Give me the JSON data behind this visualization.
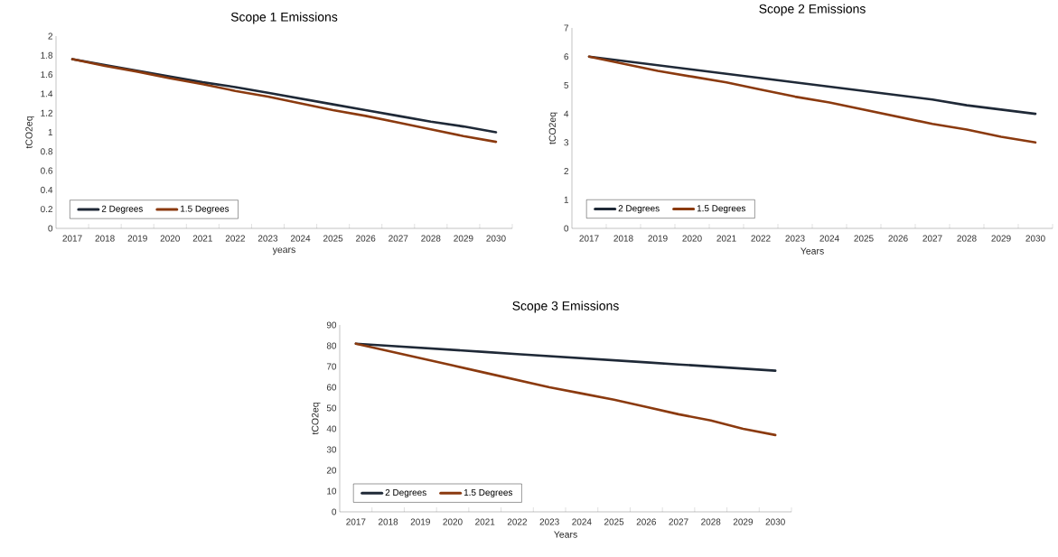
{
  "chart_data": [
    {
      "type": "line",
      "title": "Scope 1 Emissions",
      "xlabel": "years",
      "ylabel": "tCO2eq",
      "categories": [
        "2017",
        "2018",
        "2019",
        "2020",
        "2021",
        "2022",
        "2023",
        "2024",
        "2025",
        "2026",
        "2027",
        "2028",
        "2029",
        "2030"
      ],
      "series": [
        {
          "name": "2 Degrees",
          "color": "#1f2937",
          "values": [
            1.76,
            1.7,
            1.64,
            1.58,
            1.52,
            1.47,
            1.41,
            1.35,
            1.29,
            1.23,
            1.17,
            1.11,
            1.06,
            1.0
          ]
        },
        {
          "name": "1.5 Degrees",
          "color": "#8b3a0f",
          "values": [
            1.76,
            1.69,
            1.63,
            1.56,
            1.5,
            1.43,
            1.37,
            1.3,
            1.23,
            1.17,
            1.1,
            1.03,
            0.96,
            0.9
          ]
        }
      ],
      "ylim": [
        0,
        2
      ],
      "yticks": [
        0,
        0.2,
        0.4,
        0.6,
        0.8,
        1,
        1.2,
        1.4,
        1.6,
        1.8,
        2
      ],
      "grid": false,
      "legend": "bottom left",
      "marker": "none",
      "line_style": "solid"
    },
    {
      "type": "line",
      "title": "Scope 2 Emissions",
      "xlabel": "Years",
      "ylabel": "tCO2eq",
      "categories": [
        "2017",
        "2018",
        "2019",
        "2020",
        "2021",
        "2022",
        "2023",
        "2024",
        "2025",
        "2026",
        "2027",
        "2028",
        "2029",
        "2030"
      ],
      "series": [
        {
          "name": "2 Degrees",
          "color": "#1f2937",
          "values": [
            6.0,
            5.85,
            5.7,
            5.55,
            5.4,
            5.25,
            5.1,
            4.95,
            4.8,
            4.65,
            4.5,
            4.3,
            4.15,
            4.0
          ]
        },
        {
          "name": "1.5 Degrees",
          "color": "#8b3a0f",
          "values": [
            6.0,
            5.75,
            5.5,
            5.3,
            5.1,
            4.85,
            4.6,
            4.4,
            4.15,
            3.9,
            3.65,
            3.45,
            3.2,
            3.0
          ]
        }
      ],
      "ylim": [
        0,
        7
      ],
      "yticks": [
        0,
        1,
        2,
        3,
        4,
        5,
        6,
        7
      ],
      "grid": false,
      "legend": "bottom left",
      "marker": "none",
      "line_style": "solid"
    },
    {
      "type": "line",
      "title": "Scope 3 Emissions",
      "xlabel": "Years",
      "ylabel": "tCO2eq",
      "categories": [
        "2017",
        "2018",
        "2019",
        "2020",
        "2021",
        "2022",
        "2023",
        "2024",
        "2025",
        "2026",
        "2027",
        "2028",
        "2029",
        "2030"
      ],
      "series": [
        {
          "name": "2 Degrees",
          "color": "#1f2937",
          "values": [
            81,
            80,
            79,
            78,
            77,
            76,
            75,
            74,
            73,
            72,
            71,
            70,
            69,
            68
          ]
        },
        {
          "name": "1.5 Degrees",
          "color": "#8b3a0f",
          "values": [
            81,
            77.5,
            74,
            70.5,
            67,
            63.5,
            60,
            57,
            54,
            50.5,
            47,
            44,
            40,
            37
          ]
        }
      ],
      "ylim": [
        0,
        90
      ],
      "yticks": [
        0,
        10,
        20,
        30,
        40,
        50,
        60,
        70,
        80,
        90
      ],
      "grid": false,
      "legend": "bottom left",
      "marker": "none",
      "line_style": "solid"
    }
  ]
}
